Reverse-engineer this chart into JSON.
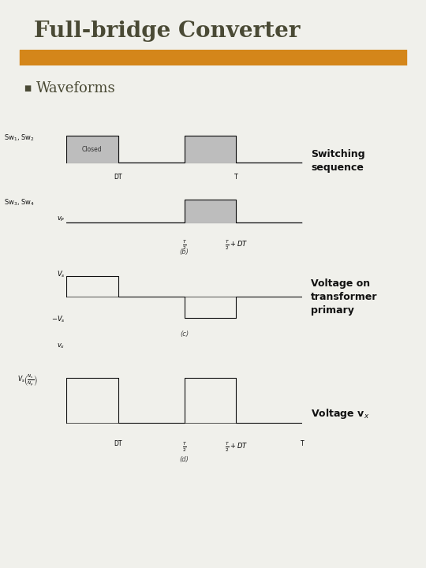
{
  "title": "Full-bridge Converter",
  "subtitle": "Waveforms",
  "bg_color": "#f0f0eb",
  "header_bar_color": "#8a9a6a",
  "header_accent_color": "#d4861a",
  "title_color": "#4a4a35",
  "switching_label": "Switching\nsequence",
  "voltage_primary_label": "Voltage on\ntransformer\nprimary",
  "voltage_vx_label": "Voltage v$_x$",
  "sw12_label": "Sw$_1$, Sw$_2$",
  "sw34_label": "Sw$_3$, Sw$_4$",
  "vp_label": "$v_P$",
  "vs_label": "$V_s$",
  "neg_vs_label": "$-V_s$",
  "vx_label": "$v_x$",
  "vx_ratio_label": "$V_s\\left(\\frac{N_s}{N_p}\\right)$",
  "closed_label": "Closed",
  "label_b": "(b)",
  "label_c": "(c)",
  "label_d": "(d)",
  "dt_label": "DT",
  "T_label": "T",
  "pulse_color": "#b8b8b8",
  "wave_color": "#111111",
  "DT": 0.22,
  "T": 1.0
}
